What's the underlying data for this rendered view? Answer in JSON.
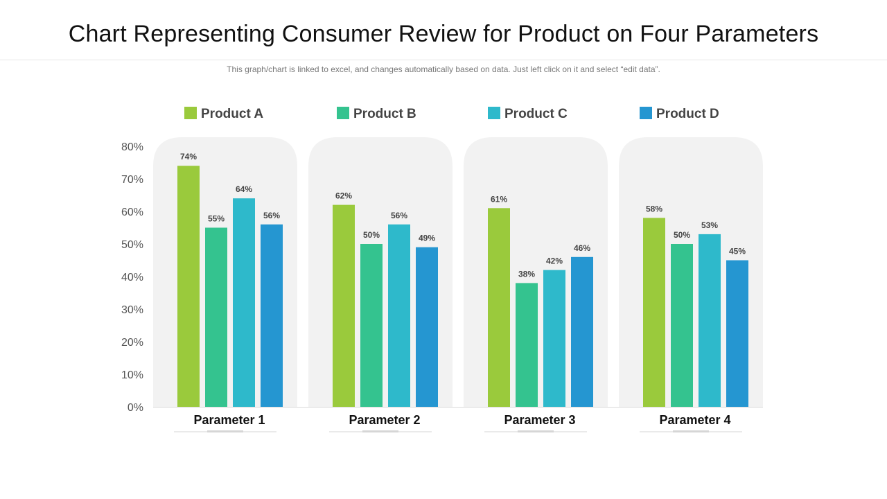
{
  "page": {
    "title": "Chart Representing Consumer Review for Product on Four Parameters",
    "subtitle": "This graph/chart is linked to excel, and changes automatically based on data. Just left click on it and select “edit data”."
  },
  "chart_data": {
    "type": "bar",
    "title": "Chart Representing Consumer Review for Product on Four Parameters",
    "xlabel": "",
    "ylabel": "",
    "ylim": [
      0,
      80
    ],
    "yticks": [
      0,
      10,
      20,
      30,
      40,
      50,
      60,
      70,
      80
    ],
    "tick_format": "{v}%",
    "value_format": "{v}%",
    "categories": [
      "Parameter 1",
      "Parameter 2",
      "Parameter 3",
      "Parameter 4"
    ],
    "legend_position": "top",
    "grid": false,
    "series": [
      {
        "name": "Product A",
        "color": "#9ACA3C",
        "values": [
          74,
          62,
          61,
          58
        ]
      },
      {
        "name": "Product B",
        "color": "#34C38F",
        "values": [
          55,
          50,
          38,
          50
        ]
      },
      {
        "name": "Product C",
        "color": "#2EB9CB",
        "values": [
          64,
          56,
          42,
          53
        ]
      },
      {
        "name": "Product D",
        "color": "#2596D1",
        "values": [
          56,
          49,
          46,
          45
        ]
      }
    ],
    "panel_color": "#F2F2F2"
  }
}
